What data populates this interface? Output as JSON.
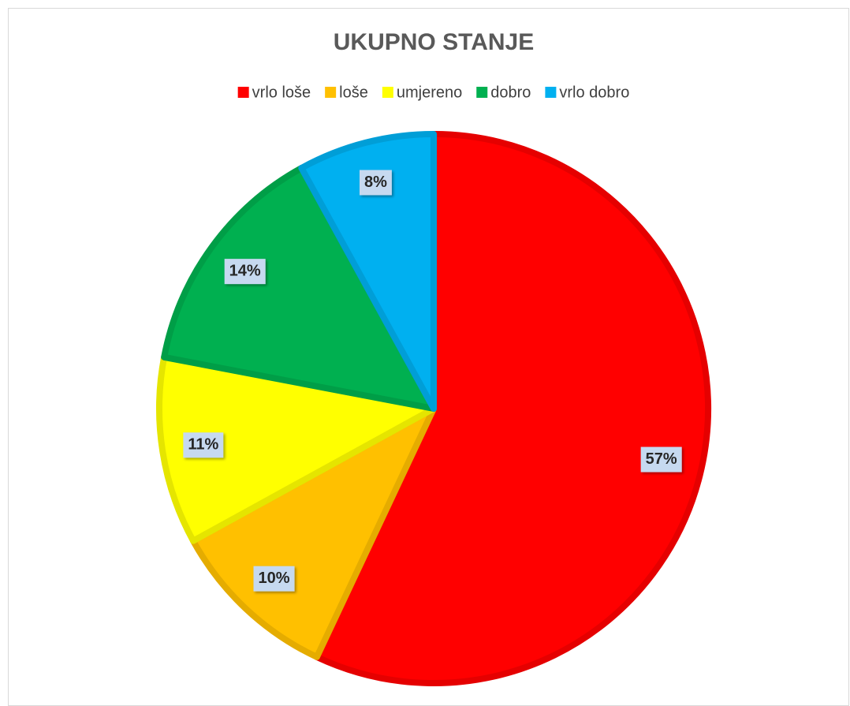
{
  "chart_data": {
    "type": "pie",
    "title": "UKUPNO STANJE",
    "categories": [
      "vrlo loše",
      "loše",
      "umjereno",
      "dobro",
      "vrlo dobro"
    ],
    "values": [
      57,
      10,
      11,
      14,
      8
    ],
    "value_labels": [
      "57%",
      "10%",
      "11%",
      "14%",
      "8%"
    ],
    "colors": [
      "#ff0000",
      "#ffc000",
      "#ffff00",
      "#00b050",
      "#00b0f0"
    ],
    "legend": "top"
  }
}
